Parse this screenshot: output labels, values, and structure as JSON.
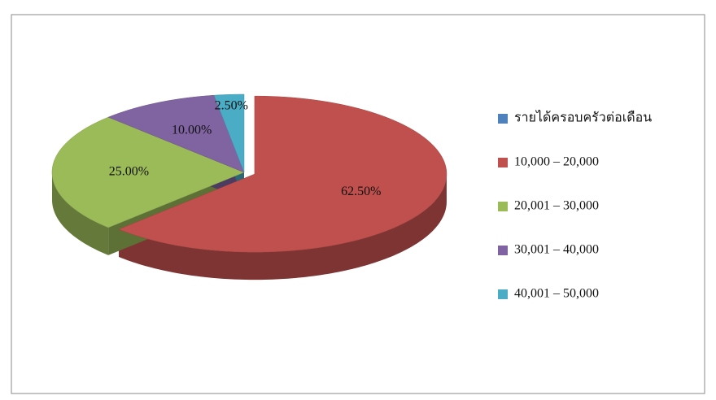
{
  "chart_data": {
    "type": "pie3d",
    "categories": [
      "รายได้ครอบครัวต่อเดือน",
      "10,000 – 20,000",
      "20,001 – 30,000",
      "30,001 – 40,000",
      "40,001 – 50,000"
    ],
    "values": [
      null,
      62.5,
      25,
      10,
      2.5
    ],
    "value_labels": [
      null,
      "62.50%",
      "25.00%",
      "10.00%",
      "2.50%"
    ],
    "colors": [
      "#4f81bd",
      "#c0504d",
      "#9bbb59",
      "#8064a2",
      "#4bacc6"
    ],
    "legend": "right"
  }
}
